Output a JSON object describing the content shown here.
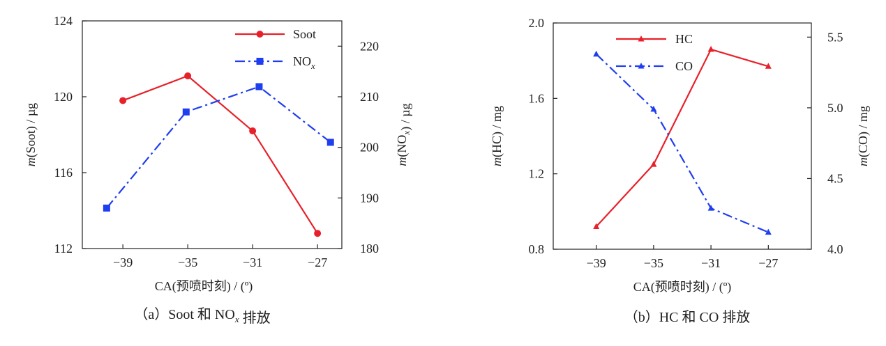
{
  "chart_data": [
    {
      "type": "line",
      "caption": "（a）Soot 和 NOₓ 排放",
      "xlabel": "CA(预喷时刻) / (º)",
      "ylabel_left": "m(Soot) / µg",
      "ylabel_right": "m(NOₓ) / µg",
      "xlim": [
        -41.5,
        -25.5
      ],
      "xticks": [
        -39,
        -35,
        -31,
        -27
      ],
      "xtick_labels": [
        "−39",
        "−35",
        "−31",
        "−27"
      ],
      "ylim_left": [
        112,
        124
      ],
      "yticks_left": [
        112,
        116,
        120,
        124
      ],
      "ylim_right": [
        180,
        225
      ],
      "yticks_right": [
        180,
        190,
        200,
        210,
        220
      ],
      "grid": false,
      "legend_position": "top-right",
      "series": [
        {
          "name": "Soot",
          "axis": "left",
          "color": "#e8202a",
          "style": "solid",
          "marker": "circle",
          "x": [
            -39,
            -35,
            -31,
            -27
          ],
          "y": [
            119.8,
            121.1,
            118.2,
            112.8
          ]
        },
        {
          "name": "NOₓ",
          "axis": "right",
          "color": "#1f3ef0",
          "style": "dashdot",
          "marker": "square",
          "x": [
            -40,
            -35.1,
            -30.6,
            -26.2
          ],
          "y": [
            188,
            207,
            212,
            201
          ]
        }
      ]
    },
    {
      "type": "line",
      "caption": "（b）HC 和 CO 排放",
      "xlabel": "CA(预喷时刻) / (º)",
      "ylabel_left": "m(HC) / mg",
      "ylabel_right": "m(CO) / mg",
      "xlim": [
        -42,
        -24
      ],
      "xticks": [
        -39,
        -35,
        -31,
        -27
      ],
      "xtick_labels": [
        "−39",
        "−35",
        "−31",
        "−27"
      ],
      "ylim_left": [
        0.8,
        2.0
      ],
      "yticks_left": [
        0.8,
        1.2,
        1.6,
        2.0
      ],
      "ytick_labels_left": [
        "0.8",
        "1.2",
        "1.6",
        "2.0"
      ],
      "ylim_right": [
        4.0,
        5.6
      ],
      "yticks_right": [
        4.0,
        4.5,
        5.0,
        5.5
      ],
      "ytick_labels_right": [
        "4.0",
        "4.5",
        "5.0",
        "5.5"
      ],
      "grid": false,
      "legend_position": "top-left",
      "series": [
        {
          "name": "HC",
          "axis": "left",
          "color": "#e8202a",
          "style": "solid",
          "marker": "triangle",
          "x": [
            -39,
            -35,
            -31,
            -27
          ],
          "y": [
            0.92,
            1.25,
            1.86,
            1.77
          ]
        },
        {
          "name": "CO",
          "axis": "right",
          "color": "#1f3ef0",
          "style": "dashdot",
          "marker": "triangle",
          "x": [
            -39,
            -35,
            -31,
            -27
          ],
          "y": [
            5.38,
            4.99,
            4.29,
            4.12
          ]
        }
      ]
    }
  ]
}
